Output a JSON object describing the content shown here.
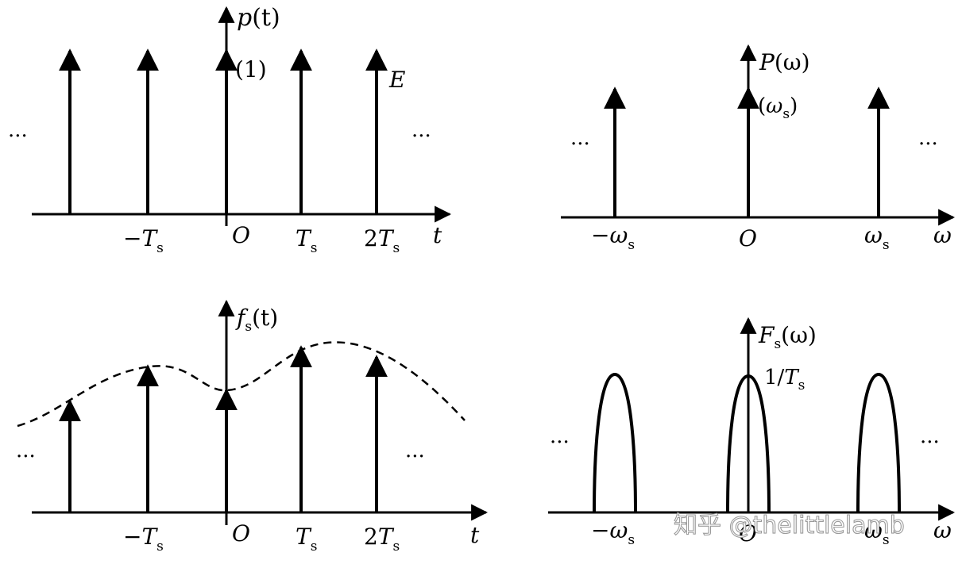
{
  "panel_tl": {
    "ylabel_main": "p",
    "ylabel_arg": "(t)",
    "weight": "(1)",
    "amp": "E",
    "x_t": "t",
    "x_O": "O",
    "ts_m_pre": "−",
    "ts_main": "T",
    "ts_sub": "s",
    "ts2_pre": "2",
    "ellipsis": "···"
  },
  "panel_tr": {
    "ylabel_main": "P",
    "ylabel_arg": "(ω)",
    "weight_open": "(",
    "weight_main": "ω",
    "weight_sub": "s",
    "weight_close": ")",
    "x_w": "ω",
    "x_O": "O",
    "ws_m_pre": "−",
    "ws_main": "ω",
    "ws_sub": "s",
    "ellipsis": "···"
  },
  "panel_bl": {
    "ylabel_main": "f",
    "ylabel_sub": "s",
    "ylabel_arg": "(t)",
    "x_t": "t",
    "x_O": "O",
    "ts_m_pre": "−",
    "ts_main": "T",
    "ts_sub": "s",
    "ts2_pre": "2",
    "ellipsis": "···"
  },
  "panel_br": {
    "ylabel_main": "F",
    "ylabel_sub": "s",
    "ylabel_arg": "(ω)",
    "peak_pre": "1/",
    "peak_main": "T",
    "peak_sub": "s",
    "x_w": "ω",
    "x_O": "O",
    "ws_m_pre": "−",
    "ws_main": "ω",
    "ws_sub": "s",
    "ellipsis": "···"
  },
  "watermark": "知乎 @thelittlelamb"
}
